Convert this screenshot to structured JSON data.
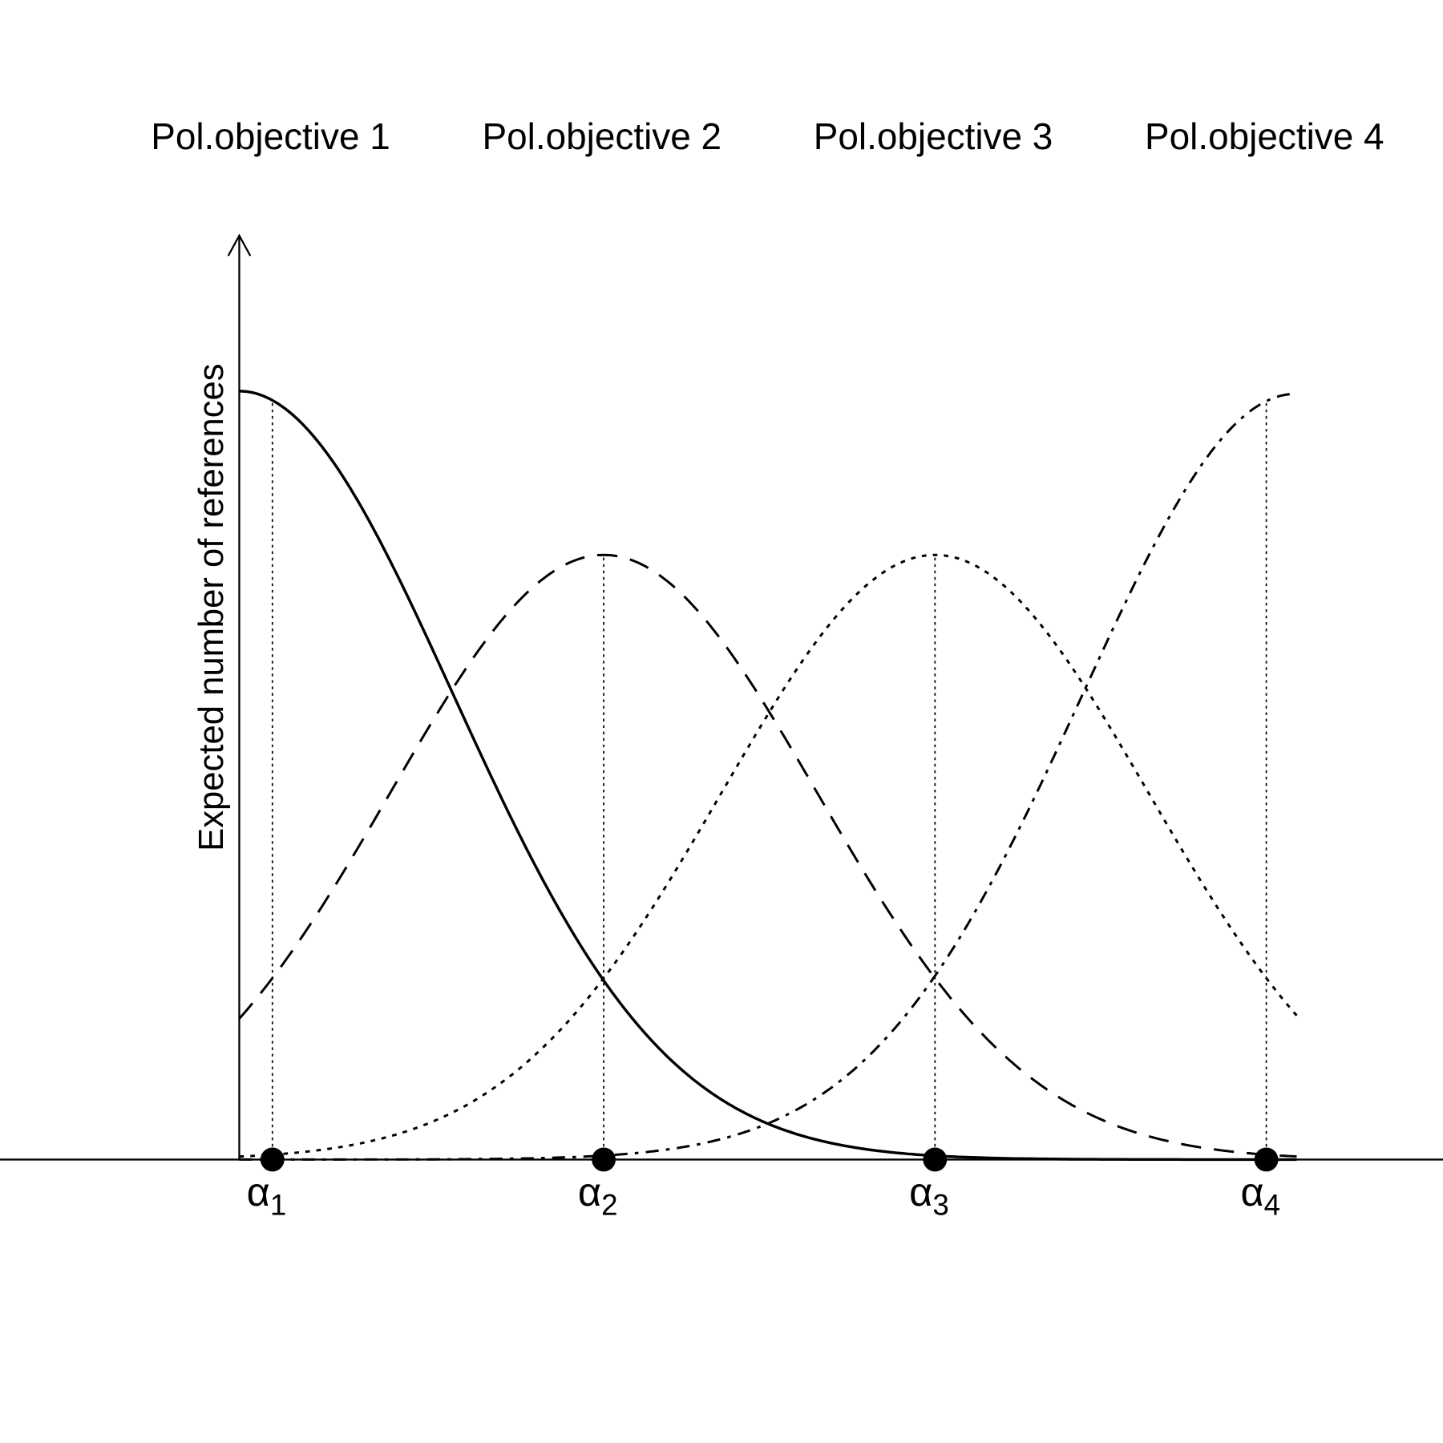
{
  "objectives": [
    "Pol.objective 1",
    "Pol.objective 2",
    "Pol.objective 3",
    "Pol.objective 4"
  ],
  "y_axis_label": "Expected number of references",
  "points": [
    {
      "symbol": "α",
      "index": "1"
    },
    {
      "symbol": "α",
      "index": "2"
    },
    {
      "symbol": "α",
      "index": "3"
    },
    {
      "symbol": "α",
      "index": "4"
    }
  ]
}
